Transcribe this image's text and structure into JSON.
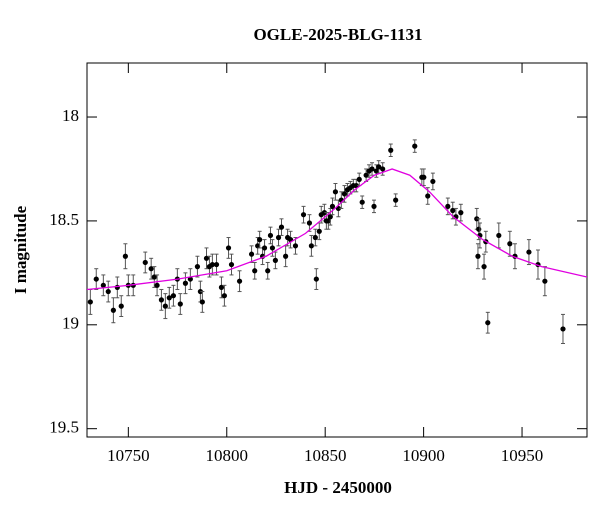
{
  "chart_data": {
    "type": "scatter",
    "title": "OGLE-2025-BLG-1131",
    "x_label": "HJD - 2450000",
    "y_label": "I magnitude",
    "xlim": [
      10729,
      10983
    ],
    "ylim": [
      19.54,
      17.74
    ],
    "y_inverted": true,
    "xticks": [
      10750,
      10800,
      10850,
      10900,
      10950
    ],
    "yticks": [
      18,
      18.5,
      19,
      19.5
    ],
    "series": [
      {
        "color": "#000000",
        "x": [
          10730.7,
          10733.7,
          10737.3,
          10739.8,
          10742.4,
          10744.4,
          10746.4,
          10748.5,
          10750,
          10752.5,
          10758.6,
          10761.6,
          10763.2,
          10764.6,
          10766.8,
          10768.8,
          10770.8,
          10772.9,
          10774.9,
          10776.4,
          10779,
          10781.5,
          10785.1,
          10786.6,
          10787.6,
          10789.7,
          10791.2,
          10792.7,
          10794.8,
          10797.3,
          10798.8,
          10800.9,
          10802.4,
          10806.5,
          10812.6,
          10814.2,
          10815.7,
          10816.7,
          10818.2,
          10819.2,
          10820.8,
          10822.2,
          10823.2,
          10824.7,
          10826.3,
          10827.8,
          10829.9,
          10830.9,
          10832.4,
          10834.9,
          10839,
          10842,
          10843,
          10845,
          10845.5,
          10847,
          10848,
          10849.6,
          10850.6,
          10851.6,
          10852.6,
          10853.7,
          10855.2,
          10856.7,
          10858.2,
          10859.8,
          10861.3,
          10862.8,
          10864.3,
          10865.8,
          10867.3,
          10868.8,
          10870.8,
          10872.3,
          10873.8,
          10874.8,
          10876,
          10877.2,
          10879.2,
          10883.3,
          10885.8,
          10895.5,
          10899.1,
          10900.1,
          10902.1,
          10904.7,
          10912.3,
          10914.8,
          10916.4,
          10918.9,
          10927,
          10928,
          10928.6,
          10927.6,
          10930.7,
          10931.6,
          10932.6,
          10938.2,
          10943.8,
          10946.4,
          10953.5,
          10958.1,
          10961.6,
          10970.8
        ],
        "values": [
          18.89,
          18.78,
          18.81,
          18.84,
          18.93,
          18.82,
          18.91,
          18.67,
          18.81,
          18.81,
          18.7,
          18.73,
          18.77,
          18.81,
          18.88,
          18.91,
          18.87,
          18.86,
          18.78,
          18.9,
          18.8,
          18.78,
          18.72,
          18.84,
          18.89,
          18.68,
          18.72,
          18.71,
          18.71,
          18.82,
          18.86,
          18.63,
          18.71,
          18.79,
          18.66,
          18.74,
          18.62,
          18.59,
          18.67,
          18.63,
          18.74,
          18.57,
          18.63,
          18.69,
          18.58,
          18.53,
          18.67,
          18.58,
          18.59,
          18.62,
          18.47,
          18.51,
          18.62,
          18.58,
          18.78,
          18.55,
          18.47,
          18.46,
          18.5,
          18.5,
          18.48,
          18.43,
          18.36,
          18.44,
          18.4,
          18.37,
          18.35,
          18.34,
          18.33,
          18.33,
          18.3,
          18.41,
          18.28,
          18.26,
          18.25,
          18.43,
          18.26,
          18.24,
          18.25,
          18.16,
          18.4,
          18.14,
          18.29,
          18.29,
          18.38,
          18.31,
          18.43,
          18.45,
          18.48,
          18.46,
          18.49,
          18.54,
          18.57,
          18.67,
          18.72,
          18.6,
          18.99,
          18.57,
          18.61,
          18.67,
          18.65,
          18.71,
          18.79,
          19.02
        ],
        "errors": [
          0.06,
          0.05,
          0.05,
          0.05,
          0.06,
          0.05,
          0.05,
          0.06,
          0.05,
          0.05,
          0.05,
          0.05,
          0.05,
          0.05,
          0.05,
          0.06,
          0.05,
          0.05,
          0.05,
          0.05,
          0.05,
          0.05,
          0.05,
          0.05,
          0.05,
          0.05,
          0.05,
          0.05,
          0.05,
          0.05,
          0.05,
          0.05,
          0.05,
          0.05,
          0.04,
          0.04,
          0.04,
          0.04,
          0.04,
          0.04,
          0.04,
          0.04,
          0.04,
          0.04,
          0.04,
          0.04,
          0.05,
          0.04,
          0.04,
          0.04,
          0.04,
          0.04,
          0.05,
          0.04,
          0.05,
          0.04,
          0.04,
          0.04,
          0.04,
          0.04,
          0.04,
          0.04,
          0.04,
          0.04,
          0.04,
          0.04,
          0.03,
          0.03,
          0.03,
          0.03,
          0.03,
          0.03,
          0.03,
          0.03,
          0.03,
          0.03,
          0.03,
          0.03,
          0.03,
          0.03,
          0.03,
          0.03,
          0.04,
          0.04,
          0.04,
          0.04,
          0.04,
          0.04,
          0.04,
          0.04,
          0.05,
          0.05,
          0.06,
          0.06,
          0.06,
          0.05,
          0.05,
          0.06,
          0.06,
          0.06,
          0.06,
          0.07,
          0.07,
          0.07
        ]
      },
      {
        "type": "line",
        "color": "#e000e0",
        "x": [
          10729,
          10750,
          10775,
          10800,
          10820,
          10840,
          10855,
          10865,
          10875,
          10884,
          10893,
          10903,
          10915,
          10930,
          10945,
          10960,
          10983
        ],
        "values": [
          18.83,
          18.81,
          18.78,
          18.74,
          18.67,
          18.56,
          18.44,
          18.35,
          18.28,
          18.25,
          18.28,
          18.36,
          18.48,
          18.59,
          18.67,
          18.72,
          18.77
        ]
      }
    ]
  }
}
